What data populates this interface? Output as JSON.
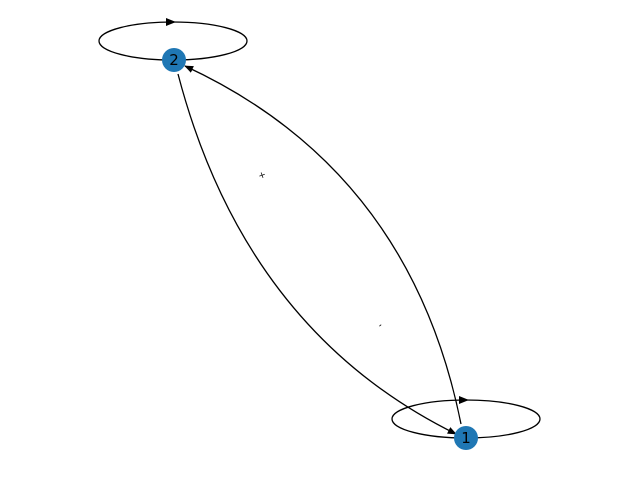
{
  "graph": {
    "nodes": [
      {
        "id": "2",
        "label": "2"
      },
      {
        "id": "1",
        "label": "1"
      }
    ],
    "edges": [
      {
        "from": "2",
        "to": "2",
        "kind": "self-loop"
      },
      {
        "from": "1",
        "to": "1",
        "kind": "self-loop"
      },
      {
        "from": "2",
        "to": "1",
        "kind": "curved"
      },
      {
        "from": "1",
        "to": "2",
        "kind": "curved"
      }
    ],
    "edge_labels": {
      "plus": "+",
      "minus": "-"
    }
  },
  "colors": {
    "node_fill": "#1f77b4",
    "edge_stroke": "#000000",
    "background": "#ffffff"
  }
}
